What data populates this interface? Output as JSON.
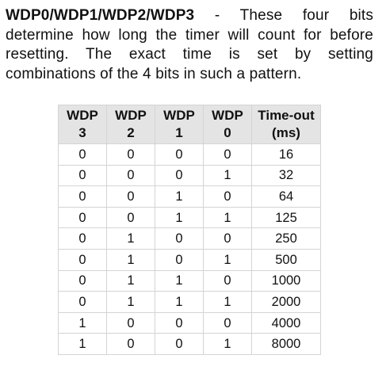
{
  "description": {
    "term": "WDP0/WDP1/WDP2/WDP3",
    "text": " - These four bits determine how long the timer will count for before resetting. The exact time is set by setting combinations of the 4 bits in such a pattern."
  },
  "table": {
    "headers": [
      {
        "line1": "WDP",
        "line2": "3"
      },
      {
        "line1": "WDP",
        "line2": "2"
      },
      {
        "line1": "WDP",
        "line2": "1"
      },
      {
        "line1": "WDP",
        "line2": "0"
      },
      {
        "line1": "Time-out",
        "line2": "(ms)"
      }
    ],
    "rows": [
      [
        "0",
        "0",
        "0",
        "0",
        "16"
      ],
      [
        "0",
        "0",
        "0",
        "1",
        "32"
      ],
      [
        "0",
        "0",
        "1",
        "0",
        "64"
      ],
      [
        "0",
        "0",
        "1",
        "1",
        "125"
      ],
      [
        "0",
        "1",
        "0",
        "0",
        "250"
      ],
      [
        "0",
        "1",
        "0",
        "1",
        "500"
      ],
      [
        "0",
        "1",
        "1",
        "0",
        "1000"
      ],
      [
        "0",
        "1",
        "1",
        "1",
        "2000"
      ],
      [
        "1",
        "0",
        "0",
        "0",
        "4000"
      ],
      [
        "1",
        "0",
        "0",
        "1",
        "8000"
      ]
    ]
  }
}
